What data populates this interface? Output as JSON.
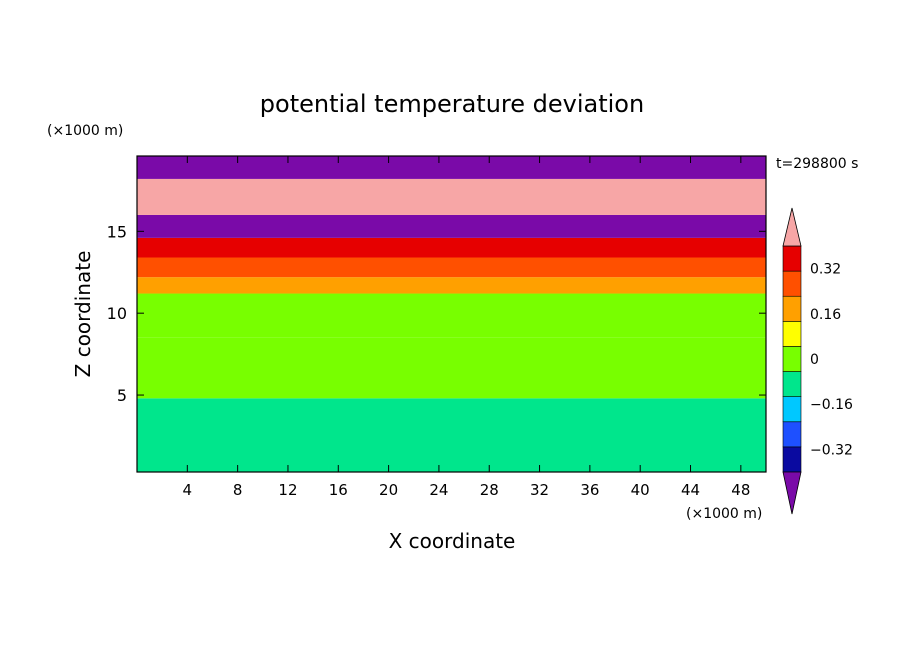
{
  "chart_data": {
    "type": "heatmap",
    "title": "potential temperature deviation",
    "time_label": "t=298800 s",
    "xlabel": "X coordinate",
    "ylabel": "Z coordinate",
    "x_unit": "(×1000 m)",
    "y_unit": "(×1000 m)",
    "xlim": [
      0,
      50
    ],
    "ylim": [
      0.3,
      19.6
    ],
    "x_ticks": [
      "4",
      "8",
      "12",
      "16",
      "20",
      "24",
      "28",
      "32",
      "36",
      "40",
      "44",
      "48"
    ],
    "x_tick_values": [
      4,
      8,
      12,
      16,
      20,
      24,
      28,
      32,
      36,
      40,
      44,
      48
    ],
    "y_ticks": [
      "5",
      "10",
      "15"
    ],
    "y_tick_values": [
      5,
      10,
      15
    ],
    "colorbar": {
      "levels": [
        -0.4,
        -0.32,
        -0.24,
        -0.16,
        -0.08,
        0,
        0.08,
        0.16,
        0.24,
        0.32,
        0.4
      ],
      "tick_labels": [
        "0.32",
        "0.16",
        "0",
        "−0.16",
        "−0.32"
      ],
      "tick_values": [
        0.32,
        0.16,
        0,
        -0.16,
        -0.32
      ],
      "colors": [
        "#7a0aa8",
        "#0a0aa0",
        "#1e50ff",
        "#00c8ff",
        "#00e68c",
        "#78ff00",
        "#ffff00",
        "#ffa000",
        "#ff5000",
        "#e60000",
        "#f7a6a6"
      ]
    },
    "bands": [
      {
        "z": [
          0.3,
          4.8
        ],
        "v": -0.08
      },
      {
        "z": [
          4.8,
          8.5
        ],
        "v": 0.02
      },
      {
        "z": [
          8.5,
          11.2
        ],
        "v": 0.06
      },
      {
        "z": [
          11.2,
          12.2
        ],
        "v": 0.2
      },
      {
        "z": [
          12.2,
          13.4
        ],
        "v": 0.26
      },
      {
        "z": [
          13.4,
          14.6
        ],
        "v": 0.34
      },
      {
        "z": [
          14.6,
          16.0
        ],
        "v": -0.38
      },
      {
        "z": [
          16.0,
          18.2
        ],
        "v": 0.42
      },
      {
        "z": [
          18.2,
          19.6
        ],
        "v": -0.38
      }
    ]
  }
}
